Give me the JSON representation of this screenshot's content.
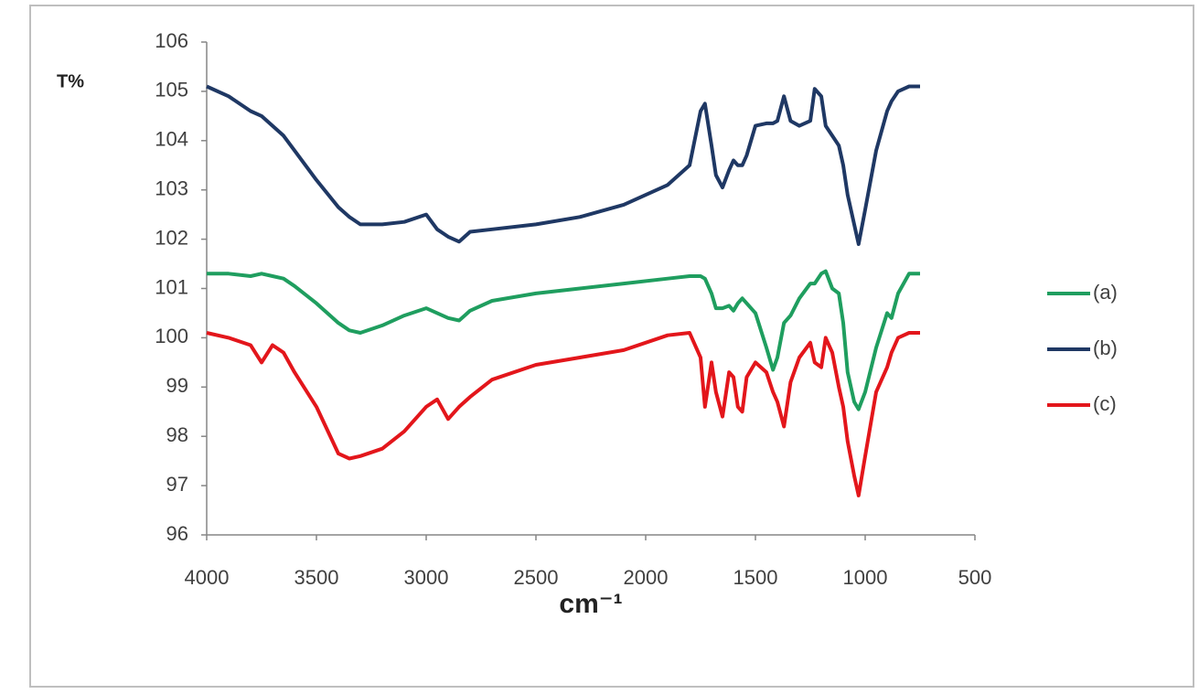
{
  "chart_data": {
    "type": "line",
    "x_label": "cm⁻¹",
    "y_label": "T%",
    "x": [
      4000,
      3900,
      3800,
      3750,
      3700,
      3650,
      3600,
      3500,
      3400,
      3350,
      3300,
      3200,
      3100,
      3000,
      2950,
      2900,
      2850,
      2800,
      2700,
      2500,
      2300,
      2100,
      1900,
      1800,
      1750,
      1730,
      1700,
      1680,
      1650,
      1620,
      1600,
      1580,
      1560,
      1540,
      1500,
      1450,
      1420,
      1400,
      1370,
      1340,
      1300,
      1250,
      1230,
      1200,
      1180,
      1150,
      1120,
      1100,
      1080,
      1050,
      1030,
      1000,
      950,
      900,
      880,
      850,
      800,
      750
    ],
    "series": [
      {
        "name": "(a)",
        "color": "#1f9e5f",
        "values": [
          101.3,
          101.3,
          101.25,
          101.3,
          101.25,
          101.2,
          101.05,
          100.7,
          100.3,
          100.15,
          100.1,
          100.25,
          100.45,
          100.6,
          100.5,
          100.4,
          100.35,
          100.55,
          100.75,
          100.9,
          101.0,
          101.1,
          101.2,
          101.25,
          101.25,
          101.2,
          100.9,
          100.6,
          100.6,
          100.65,
          100.55,
          100.7,
          100.8,
          100.7,
          100.5,
          99.8,
          99.35,
          99.6,
          100.3,
          100.45,
          100.8,
          101.1,
          101.1,
          101.3,
          101.35,
          101.0,
          100.9,
          100.3,
          99.3,
          98.7,
          98.55,
          98.9,
          99.8,
          100.5,
          100.4,
          100.9,
          101.3,
          101.3
        ]
      },
      {
        "name": "(b)",
        "color": "#1f3864",
        "values": [
          105.1,
          104.9,
          104.6,
          104.5,
          104.3,
          104.1,
          103.8,
          103.2,
          102.65,
          102.45,
          102.3,
          102.3,
          102.35,
          102.5,
          102.2,
          102.05,
          101.95,
          102.15,
          102.2,
          102.3,
          102.45,
          102.7,
          103.1,
          103.5,
          104.6,
          104.75,
          103.9,
          103.3,
          103.05,
          103.4,
          103.6,
          103.5,
          103.5,
          103.7,
          104.3,
          104.35,
          104.35,
          104.4,
          104.9,
          104.4,
          104.3,
          104.4,
          105.05,
          104.9,
          104.3,
          104.1,
          103.9,
          103.5,
          102.9,
          102.3,
          101.9,
          102.6,
          103.8,
          104.6,
          104.8,
          105.0,
          105.1,
          105.1
        ]
      },
      {
        "name": "(c)",
        "color": "#e3161b",
        "values": [
          100.1,
          100.0,
          99.85,
          99.5,
          99.85,
          99.7,
          99.3,
          98.6,
          97.65,
          97.55,
          97.6,
          97.75,
          98.1,
          98.6,
          98.75,
          98.35,
          98.6,
          98.8,
          99.15,
          99.45,
          99.6,
          99.75,
          100.05,
          100.1,
          99.6,
          98.6,
          99.5,
          98.9,
          98.4,
          99.3,
          99.2,
          98.6,
          98.5,
          99.2,
          99.5,
          99.3,
          98.9,
          98.7,
          98.2,
          99.1,
          99.6,
          99.9,
          99.5,
          99.4,
          100.0,
          99.7,
          99.0,
          98.6,
          97.9,
          97.2,
          96.8,
          97.6,
          98.9,
          99.4,
          99.7,
          100.0,
          100.1,
          100.1
        ]
      }
    ],
    "xlim": [
      4000,
      500
    ],
    "xticks": [
      4000,
      3500,
      3000,
      2500,
      2000,
      1500,
      1000,
      500
    ],
    "ylim": [
      96,
      106
    ],
    "yticks": [
      96,
      97,
      98,
      99,
      100,
      101,
      102,
      103,
      104,
      105,
      106
    ],
    "grid": false,
    "legend": "right"
  }
}
